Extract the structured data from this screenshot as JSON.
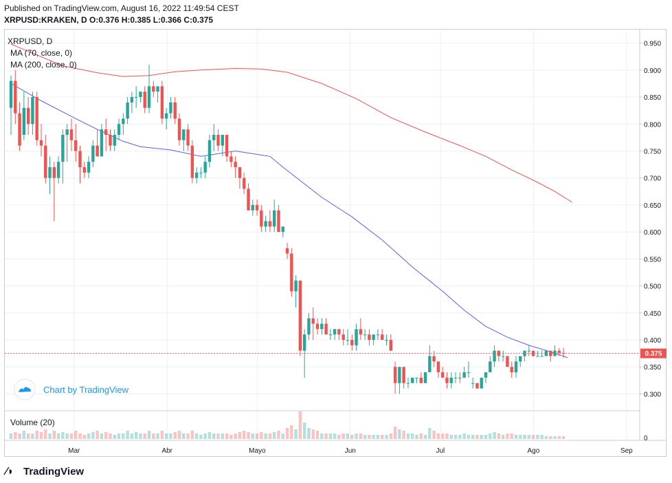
{
  "header": {
    "published": "Published on TradingView.com, August 16, 2022 11:49:54 CEST",
    "ohlc": "XRPUSD:KRAKEN, D  O:0.376 H:0.385 L:0.366 C:0.375"
  },
  "legend": {
    "symbol": "XRPUSD, D",
    "ma70": "MA (70, close, 0)",
    "ma200": "MA (200, close, 0)",
    "volume": "Volume (20)"
  },
  "watermark": "Chart by TradingView",
  "footer_logo": "TradingView",
  "colors": {
    "up": "#26a69a",
    "down": "#ef5350",
    "ma70": "#5b5fef",
    "ma200": "#f0524f",
    "grid": "#eceff3",
    "axis_text": "#131722",
    "price_label_bg": "#ef5350"
  },
  "chart_data": {
    "type": "candlestick",
    "title": "XRPUSD, D",
    "y_ticks": [
      "0.950",
      "0.900",
      "0.850",
      "0.800",
      "0.750",
      "0.700",
      "0.650",
      "0.600",
      "0.550",
      "0.500",
      "0.450",
      "0.400",
      "0.350",
      "0.300"
    ],
    "y_range": [
      0.27,
      0.975
    ],
    "x_ticks": [
      "Mar",
      "Abr",
      "Mayo",
      "Jun",
      "Jul",
      "Ago",
      "Sep"
    ],
    "start_date": "2022-02-08",
    "last_price_label": "0.375",
    "volume_tick": "0",
    "candles_ohlc": [
      [
        0.83,
        0.89,
        0.78,
        0.88
      ],
      [
        0.88,
        0.9,
        0.8,
        0.82
      ],
      [
        0.82,
        0.84,
        0.75,
        0.76
      ],
      [
        0.78,
        0.86,
        0.77,
        0.83
      ],
      [
        0.83,
        0.85,
        0.78,
        0.8
      ],
      [
        0.8,
        0.86,
        0.78,
        0.85
      ],
      [
        0.85,
        0.86,
        0.76,
        0.77
      ],
      [
        0.77,
        0.8,
        0.74,
        0.76
      ],
      [
        0.76,
        0.78,
        0.69,
        0.7
      ],
      [
        0.7,
        0.74,
        0.67,
        0.72
      ],
      [
        0.72,
        0.73,
        0.62,
        0.7
      ],
      [
        0.7,
        0.74,
        0.69,
        0.73
      ],
      [
        0.73,
        0.79,
        0.69,
        0.78
      ],
      [
        0.78,
        0.8,
        0.73,
        0.79
      ],
      [
        0.79,
        0.81,
        0.75,
        0.77
      ],
      [
        0.77,
        0.8,
        0.73,
        0.75
      ],
      [
        0.75,
        0.76,
        0.69,
        0.72
      ],
      [
        0.72,
        0.73,
        0.7,
        0.71
      ],
      [
        0.71,
        0.74,
        0.7,
        0.73
      ],
      [
        0.73,
        0.77,
        0.72,
        0.76
      ],
      [
        0.76,
        0.79,
        0.74,
        0.74
      ],
      [
        0.74,
        0.8,
        0.74,
        0.79
      ],
      [
        0.79,
        0.81,
        0.75,
        0.78
      ],
      [
        0.78,
        0.79,
        0.75,
        0.76
      ],
      [
        0.76,
        0.79,
        0.75,
        0.78
      ],
      [
        0.78,
        0.81,
        0.77,
        0.8
      ],
      [
        0.8,
        0.82,
        0.78,
        0.81
      ],
      [
        0.81,
        0.85,
        0.8,
        0.84
      ],
      [
        0.84,
        0.86,
        0.82,
        0.85
      ],
      [
        0.85,
        0.87,
        0.83,
        0.85
      ],
      [
        0.85,
        0.86,
        0.84,
        0.86
      ],
      [
        0.86,
        0.87,
        0.82,
        0.83
      ],
      [
        0.83,
        0.91,
        0.82,
        0.87
      ],
      [
        0.87,
        0.88,
        0.85,
        0.86
      ],
      [
        0.86,
        0.87,
        0.84,
        0.87
      ],
      [
        0.87,
        0.88,
        0.8,
        0.81
      ],
      [
        0.81,
        0.83,
        0.79,
        0.82
      ],
      [
        0.82,
        0.85,
        0.81,
        0.84
      ],
      [
        0.84,
        0.85,
        0.8,
        0.81
      ],
      [
        0.81,
        0.82,
        0.76,
        0.77
      ],
      [
        0.77,
        0.79,
        0.75,
        0.79
      ],
      [
        0.79,
        0.8,
        0.75,
        0.76
      ],
      [
        0.76,
        0.77,
        0.69,
        0.7
      ],
      [
        0.7,
        0.72,
        0.69,
        0.71
      ],
      [
        0.71,
        0.72,
        0.7,
        0.71
      ],
      [
        0.71,
        0.74,
        0.7,
        0.73
      ],
      [
        0.73,
        0.78,
        0.72,
        0.77
      ],
      [
        0.77,
        0.8,
        0.75,
        0.78
      ],
      [
        0.78,
        0.79,
        0.75,
        0.76
      ],
      [
        0.76,
        0.78,
        0.74,
        0.78
      ],
      [
        0.78,
        0.78,
        0.73,
        0.74
      ],
      [
        0.74,
        0.75,
        0.72,
        0.73
      ],
      [
        0.73,
        0.74,
        0.7,
        0.72
      ],
      [
        0.72,
        0.72,
        0.68,
        0.7
      ],
      [
        0.7,
        0.71,
        0.67,
        0.68
      ],
      [
        0.68,
        0.69,
        0.64,
        0.64
      ],
      [
        0.64,
        0.66,
        0.63,
        0.65
      ],
      [
        0.65,
        0.66,
        0.63,
        0.64
      ],
      [
        0.64,
        0.65,
        0.6,
        0.61
      ],
      [
        0.61,
        0.63,
        0.6,
        0.62
      ],
      [
        0.62,
        0.64,
        0.6,
        0.61
      ],
      [
        0.61,
        0.66,
        0.6,
        0.64
      ],
      [
        0.64,
        0.65,
        0.6,
        0.6
      ],
      [
        0.6,
        0.61,
        0.59,
        0.61
      ],
      [
        0.57,
        0.58,
        0.55,
        0.56
      ],
      [
        0.56,
        0.57,
        0.48,
        0.49
      ],
      [
        0.49,
        0.52,
        0.46,
        0.51
      ],
      [
        0.51,
        0.51,
        0.37,
        0.38
      ],
      [
        0.38,
        0.42,
        0.33,
        0.41
      ],
      [
        0.41,
        0.45,
        0.4,
        0.44
      ],
      [
        0.44,
        0.46,
        0.4,
        0.43
      ],
      [
        0.43,
        0.44,
        0.41,
        0.42
      ],
      [
        0.42,
        0.44,
        0.41,
        0.43
      ],
      [
        0.43,
        0.44,
        0.41,
        0.41
      ],
      [
        0.41,
        0.42,
        0.4,
        0.41
      ],
      [
        0.41,
        0.42,
        0.4,
        0.42
      ],
      [
        0.42,
        0.42,
        0.4,
        0.41
      ],
      [
        0.41,
        0.42,
        0.39,
        0.4
      ],
      [
        0.4,
        0.42,
        0.39,
        0.4
      ],
      [
        0.4,
        0.41,
        0.38,
        0.39
      ],
      [
        0.39,
        0.43,
        0.38,
        0.42
      ],
      [
        0.42,
        0.44,
        0.4,
        0.41
      ],
      [
        0.41,
        0.42,
        0.4,
        0.41
      ],
      [
        0.41,
        0.42,
        0.39,
        0.4
      ],
      [
        0.4,
        0.41,
        0.39,
        0.41
      ],
      [
        0.41,
        0.42,
        0.4,
        0.41
      ],
      [
        0.41,
        0.42,
        0.4,
        0.4
      ],
      [
        0.4,
        0.41,
        0.39,
        0.4
      ],
      [
        0.4,
        0.41,
        0.38,
        0.38
      ],
      [
        0.35,
        0.36,
        0.3,
        0.32
      ],
      [
        0.32,
        0.35,
        0.3,
        0.35
      ],
      [
        0.35,
        0.35,
        0.31,
        0.32
      ],
      [
        0.32,
        0.33,
        0.31,
        0.32
      ],
      [
        0.32,
        0.33,
        0.32,
        0.33
      ],
      [
        0.33,
        0.33,
        0.32,
        0.33
      ],
      [
        0.33,
        0.34,
        0.32,
        0.32
      ],
      [
        0.32,
        0.34,
        0.32,
        0.34
      ],
      [
        0.34,
        0.39,
        0.34,
        0.37
      ],
      [
        0.37,
        0.38,
        0.35,
        0.36
      ],
      [
        0.36,
        0.36,
        0.33,
        0.34
      ],
      [
        0.34,
        0.35,
        0.33,
        0.33
      ],
      [
        0.33,
        0.34,
        0.31,
        0.32
      ],
      [
        0.32,
        0.34,
        0.31,
        0.33
      ],
      [
        0.33,
        0.34,
        0.32,
        0.33
      ],
      [
        0.33,
        0.34,
        0.32,
        0.33
      ],
      [
        0.33,
        0.35,
        0.33,
        0.34
      ],
      [
        0.34,
        0.36,
        0.33,
        0.34
      ],
      [
        0.32,
        0.33,
        0.31,
        0.32
      ],
      [
        0.32,
        0.32,
        0.31,
        0.31
      ],
      [
        0.31,
        0.33,
        0.31,
        0.33
      ],
      [
        0.33,
        0.34,
        0.32,
        0.34
      ],
      [
        0.34,
        0.37,
        0.34,
        0.36
      ],
      [
        0.36,
        0.39,
        0.35,
        0.38
      ],
      [
        0.38,
        0.38,
        0.36,
        0.37
      ],
      [
        0.37,
        0.38,
        0.36,
        0.37
      ],
      [
        0.37,
        0.37,
        0.35,
        0.35
      ],
      [
        0.35,
        0.36,
        0.33,
        0.34
      ],
      [
        0.34,
        0.37,
        0.33,
        0.36
      ],
      [
        0.36,
        0.37,
        0.35,
        0.37
      ],
      [
        0.37,
        0.38,
        0.36,
        0.38
      ],
      [
        0.38,
        0.39,
        0.37,
        0.38
      ],
      [
        0.38,
        0.38,
        0.37,
        0.37
      ],
      [
        0.37,
        0.38,
        0.37,
        0.37
      ],
      [
        0.37,
        0.38,
        0.37,
        0.37
      ],
      [
        0.37,
        0.38,
        0.37,
        0.38
      ],
      [
        0.38,
        0.38,
        0.36,
        0.37
      ],
      [
        0.37,
        0.39,
        0.37,
        0.38
      ],
      [
        0.38,
        0.385,
        0.37,
        0.376
      ],
      [
        0.376,
        0.385,
        0.366,
        0.375
      ]
    ],
    "volume_levels": [
      0.2,
      0.25,
      0.2,
      0.3,
      0.2,
      0.2,
      0.3,
      0.25,
      0.35,
      0.2,
      0.3,
      0.2,
      0.25,
      0.2,
      0.2,
      0.3,
      0.2,
      0.15,
      0.2,
      0.25,
      0.3,
      0.2,
      0.25,
      0.2,
      0.15,
      0.2,
      0.2,
      0.3,
      0.2,
      0.25,
      0.2,
      0.2,
      0.3,
      0.2,
      0.2,
      0.3,
      0.2,
      0.2,
      0.25,
      0.3,
      0.2,
      0.2,
      0.3,
      0.2,
      0.15,
      0.2,
      0.25,
      0.2,
      0.2,
      0.2,
      0.2,
      0.15,
      0.2,
      0.25,
      0.3,
      0.25,
      0.2,
      0.2,
      0.25,
      0.2,
      0.2,
      0.25,
      0.3,
      0.2,
      0.4,
      0.5,
      0.35,
      1.0,
      0.6,
      0.4,
      0.35,
      0.3,
      0.2,
      0.2,
      0.2,
      0.2,
      0.15,
      0.2,
      0.2,
      0.15,
      0.2,
      0.2,
      0.15,
      0.15,
      0.15,
      0.15,
      0.15,
      0.15,
      0.2,
      0.45,
      0.35,
      0.3,
      0.2,
      0.2,
      0.15,
      0.2,
      0.15,
      0.4,
      0.3,
      0.2,
      0.2,
      0.2,
      0.15,
      0.15,
      0.15,
      0.2,
      0.15,
      0.15,
      0.15,
      0.15,
      0.15,
      0.2,
      0.25,
      0.2,
      0.15,
      0.2,
      0.2,
      0.15,
      0.15,
      0.15,
      0.15,
      0.15,
      0.15,
      0.15,
      0.1,
      0.1,
      0.1,
      0.1,
      0.1,
      0.1
    ],
    "ma70": [
      [
        0,
        0.875
      ],
      [
        7,
        0.843
      ],
      [
        15,
        0.81
      ],
      [
        20,
        0.79
      ],
      [
        26,
        0.768
      ],
      [
        30,
        0.758
      ],
      [
        37,
        0.752
      ],
      [
        44,
        0.74
      ],
      [
        52,
        0.75
      ],
      [
        60,
        0.74
      ],
      [
        63,
        0.72
      ],
      [
        72,
        0.664
      ],
      [
        79,
        0.628
      ],
      [
        86,
        0.585
      ],
      [
        93,
        0.535
      ],
      [
        100,
        0.49
      ],
      [
        105,
        0.455
      ],
      [
        110,
        0.425
      ],
      [
        115,
        0.405
      ],
      [
        120,
        0.39
      ],
      [
        125,
        0.378
      ],
      [
        129,
        0.367
      ]
    ],
    "ma200": [
      [
        0,
        0.948
      ],
      [
        6,
        0.928
      ],
      [
        12,
        0.908
      ],
      [
        20,
        0.895
      ],
      [
        26,
        0.888
      ],
      [
        32,
        0.89
      ],
      [
        38,
        0.897
      ],
      [
        44,
        0.9
      ],
      [
        52,
        0.903
      ],
      [
        58,
        0.902
      ],
      [
        64,
        0.896
      ],
      [
        72,
        0.875
      ],
      [
        80,
        0.847
      ],
      [
        88,
        0.812
      ],
      [
        96,
        0.785
      ],
      [
        104,
        0.76
      ],
      [
        110,
        0.74
      ],
      [
        116,
        0.715
      ],
      [
        122,
        0.692
      ],
      [
        126,
        0.675
      ],
      [
        130,
        0.655
      ]
    ]
  }
}
